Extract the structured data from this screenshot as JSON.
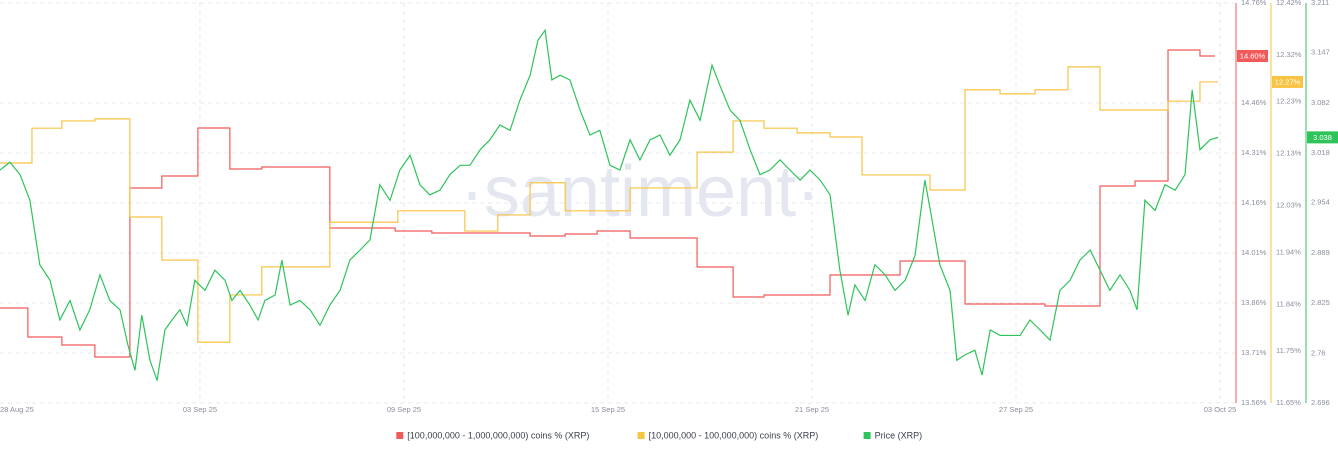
{
  "chart_data": {
    "type": "line",
    "watermark": "·santiment·",
    "xlim": [
      0.12,
      36.44
    ],
    "xticks": [
      {
        "value": 0,
        "label": "28 Aug 25"
      },
      {
        "value": 6,
        "label": "03 Sep 25"
      },
      {
        "value": 12,
        "label": "09 Sep 25"
      },
      {
        "value": 18,
        "label": "15 Sep 25"
      },
      {
        "value": 24,
        "label": "21 Sep 25"
      },
      {
        "value": 30,
        "label": "27 Sep 25"
      },
      {
        "value": 36,
        "label": "03 Oct 25"
      }
    ],
    "ylim": [
      13.56,
      14.76
    ],
    "yticks": [
      {
        "value": 14.76,
        "label": "14.76%"
      },
      {
        "value": 14.46,
        "label": "14.46%"
      },
      {
        "value": 14.31,
        "label": "14.31%"
      },
      {
        "value": 14.16,
        "label": "14.16%"
      },
      {
        "value": 14.01,
        "label": "14.01%"
      },
      {
        "value": 13.86,
        "label": "13.86%"
      },
      {
        "value": 13.71,
        "label": "13.71%"
      },
      {
        "value": 13.56,
        "label": "13.56%"
      }
    ],
    "y2lim": [
      11.65,
      12.42
    ],
    "y2ticks": [
      {
        "value": 12.42,
        "label": "12.42%"
      },
      {
        "value": 12.32,
        "label": "12.32%"
      },
      {
        "value": 12.23,
        "label": "12.23%"
      },
      {
        "value": 12.13,
        "label": "12.13%"
      },
      {
        "value": 12.03,
        "label": "12.03%"
      },
      {
        "value": 11.94,
        "label": "11.94%"
      },
      {
        "value": 11.84,
        "label": "11.84%"
      },
      {
        "value": 11.75,
        "label": "11.75%"
      },
      {
        "value": 11.65,
        "label": "11.65%"
      }
    ],
    "y3lim": [
      2.696,
      3.211
    ],
    "y3ticks": [
      3.211,
      3.147,
      3.082,
      3.018,
      2.954,
      2.889,
      2.825,
      2.76,
      2.696
    ],
    "grid": true,
    "legend": "bottom",
    "series": [
      {
        "name": "[100,000,000 - 1,000,000,000) coins % (XRP)",
        "color": "#f15a5a",
        "axis": "y",
        "step": true,
        "last_value_label": "14.60%",
        "x": [
          0.12,
          0.94,
          1.94,
          2.91,
          3.94,
          4.88,
          5.94,
          6.88,
          7.82,
          9.82,
          11.74,
          12.82,
          15.71,
          16.74,
          17.68,
          18.65,
          20.62,
          21.68,
          22.59,
          24.53,
          26.59,
          28.5,
          30.85,
          32.47,
          33.5,
          34.47,
          35.41,
          35.85
        ],
        "values": [
          13.845,
          13.758,
          13.734,
          13.698,
          14.205,
          14.241,
          14.385,
          14.262,
          14.268,
          14.085,
          14.076,
          14.07,
          14.061,
          14.067,
          14.076,
          14.055,
          13.968,
          13.878,
          13.884,
          13.944,
          13.986,
          13.857,
          13.851,
          14.211,
          14.226,
          14.619,
          14.601,
          14.601
        ]
      },
      {
        "name": "[10,000,000 - 100,000,000) coins % (XRP)",
        "color": "#f7c443",
        "axis": "y2",
        "step": true,
        "last_value_label": "12.27%",
        "x": [
          0.12,
          1.06,
          1.94,
          2.91,
          3.94,
          4.88,
          5.94,
          6.88,
          7.82,
          9.82,
          11.82,
          13.79,
          14.76,
          15.71,
          16.74,
          18.65,
          20.62,
          21.68,
          22.59,
          23.56,
          24.53,
          25.47,
          27.47,
          28.5,
          29.53,
          30.56,
          31.53,
          32.47,
          34.47,
          35.41,
          35.94
        ],
        "values": [
          12.112,
          12.179,
          12.193,
          12.197,
          12.008,
          11.925,
          11.767,
          11.858,
          11.912,
          11.998,
          12.02,
          11.981,
          12.012,
          12.074,
          12.02,
          12.064,
          12.133,
          12.193,
          12.179,
          12.17,
          12.162,
          12.089,
          12.06,
          12.253,
          12.245,
          12.253,
          12.297,
          12.214,
          12.231,
          12.268,
          12.268
        ]
      },
      {
        "name": "Price (XRP)",
        "color": "#2ec45a",
        "axis": "y3",
        "step": false,
        "last_value_label": "3.038",
        "x": [
          0.12,
          0.41,
          0.71,
          1.0,
          1.29,
          1.59,
          1.88,
          2.18,
          2.47,
          2.76,
          3.06,
          3.35,
          3.65,
          3.88,
          4.09,
          4.29,
          4.53,
          4.74,
          4.97,
          5.18,
          5.41,
          5.62,
          5.85,
          6.15,
          6.44,
          6.74,
          6.94,
          7.18,
          7.47,
          7.71,
          7.91,
          8.21,
          8.41,
          8.65,
          8.94,
          9.24,
          9.53,
          9.82,
          10.12,
          10.41,
          10.71,
          11.0,
          11.29,
          11.59,
          11.88,
          12.18,
          12.47,
          12.76,
          13.06,
          13.35,
          13.65,
          13.94,
          14.24,
          14.53,
          14.82,
          15.12,
          15.41,
          15.71,
          15.94,
          16.15,
          16.35,
          16.59,
          16.88,
          17.18,
          17.47,
          17.76,
          18.06,
          18.35,
          18.65,
          18.94,
          19.24,
          19.53,
          19.82,
          20.12,
          20.41,
          20.71,
          21.06,
          21.29,
          21.59,
          21.88,
          22.18,
          22.47,
          22.76,
          23.06,
          23.35,
          23.65,
          23.94,
          24.24,
          24.53,
          24.82,
          25.06,
          25.26,
          25.56,
          25.85,
          26.15,
          26.44,
          26.74,
          27.03,
          27.32,
          27.53,
          27.76,
          28.06,
          28.26,
          28.5,
          28.79,
          29.0,
          29.24,
          29.53,
          29.82,
          30.12,
          30.41,
          30.71,
          31.0,
          31.29,
          31.59,
          31.88,
          32.18,
          32.47,
          32.76,
          33.06,
          33.35,
          33.56,
          33.79,
          34.09,
          34.38,
          34.68,
          34.97,
          35.18,
          35.41,
          35.71,
          35.94
        ],
        "values": [
          2.996,
          3.006,
          2.99,
          2.957,
          2.874,
          2.854,
          2.803,
          2.828,
          2.79,
          2.816,
          2.861,
          2.828,
          2.816,
          2.771,
          2.738,
          2.809,
          2.751,
          2.725,
          2.79,
          2.803,
          2.816,
          2.796,
          2.854,
          2.841,
          2.867,
          2.854,
          2.828,
          2.841,
          2.822,
          2.803,
          2.828,
          2.835,
          2.88,
          2.822,
          2.828,
          2.816,
          2.796,
          2.822,
          2.841,
          2.88,
          2.893,
          2.906,
          2.977,
          2.957,
          2.996,
          3.015,
          2.977,
          2.964,
          2.97,
          2.99,
          3.002,
          3.002,
          3.022,
          3.035,
          3.054,
          3.047,
          3.086,
          3.118,
          3.163,
          3.176,
          3.112,
          3.118,
          3.112,
          3.073,
          3.041,
          3.047,
          3.002,
          2.996,
          3.035,
          3.009,
          3.035,
          3.041,
          3.015,
          3.035,
          3.086,
          3.06,
          3.131,
          3.105,
          3.073,
          3.06,
          3.022,
          2.99,
          2.996,
          3.009,
          2.996,
          2.983,
          2.996,
          2.983,
          2.964,
          2.867,
          2.809,
          2.848,
          2.828,
          2.874,
          2.861,
          2.841,
          2.854,
          2.886,
          2.983,
          2.932,
          2.874,
          2.841,
          2.751,
          2.758,
          2.764,
          2.732,
          2.79,
          2.783,
          2.783,
          2.783,
          2.803,
          2.79,
          2.777,
          2.841,
          2.854,
          2.88,
          2.893,
          2.867,
          2.841,
          2.861,
          2.841,
          2.816,
          2.957,
          2.944,
          2.977,
          2.97,
          2.99,
          3.099,
          3.022,
          3.035,
          3.038
        ]
      }
    ]
  }
}
